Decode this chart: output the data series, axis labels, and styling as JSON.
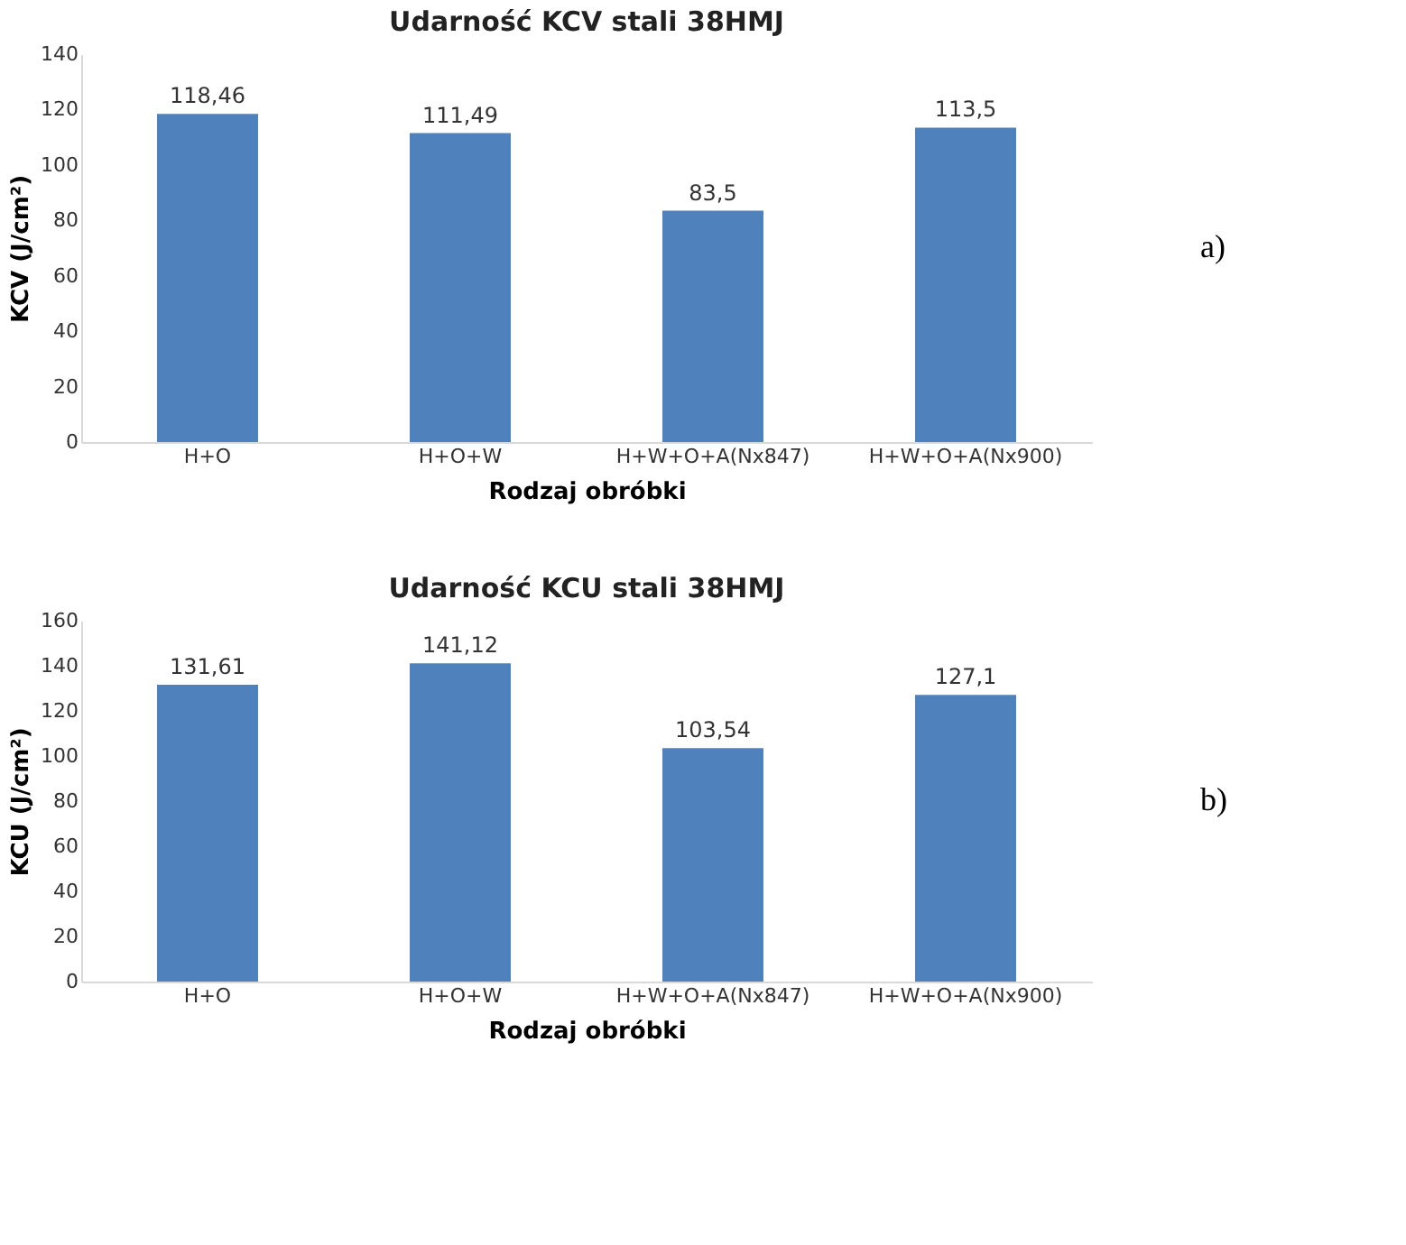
{
  "chart_data": [
    {
      "type": "bar",
      "title": "Udarność KCV stali 38HMJ",
      "xlabel": "Rodzaj obróbki",
      "ylabel": "KCV (J/cm²)",
      "categories": [
        "H+O",
        "H+O+W",
        "H+W+O+A(Nx847)",
        "H+W+O+A(Nx900)"
      ],
      "values": [
        118.46,
        111.49,
        83.5,
        113.5
      ],
      "value_labels": [
        "118,46",
        "111,49",
        "83,5",
        "113,5"
      ],
      "color": "#4f81bd",
      "ylim": [
        0,
        140
      ],
      "yticks": [
        0,
        20,
        40,
        60,
        80,
        100,
        120,
        140
      ],
      "grid": false,
      "annotations": [
        "a)"
      ]
    },
    {
      "type": "bar",
      "title": "Udarność KCU stali 38HMJ",
      "xlabel": "Rodzaj obróbki",
      "ylabel": "KCU (J/cm²)",
      "categories": [
        "H+O",
        "H+O+W",
        "H+W+O+A(Nx847)",
        "H+W+O+A(Nx900)"
      ],
      "values": [
        131.61,
        141.12,
        103.54,
        127.1
      ],
      "value_labels": [
        "131,61",
        "141,12",
        "103,54",
        "127,1"
      ],
      "color": "#4f81bd",
      "ylim": [
        0,
        160
      ],
      "yticks": [
        0,
        20,
        40,
        60,
        80,
        100,
        120,
        140,
        160
      ],
      "grid": false,
      "annotations": [
        "b)"
      ]
    }
  ]
}
